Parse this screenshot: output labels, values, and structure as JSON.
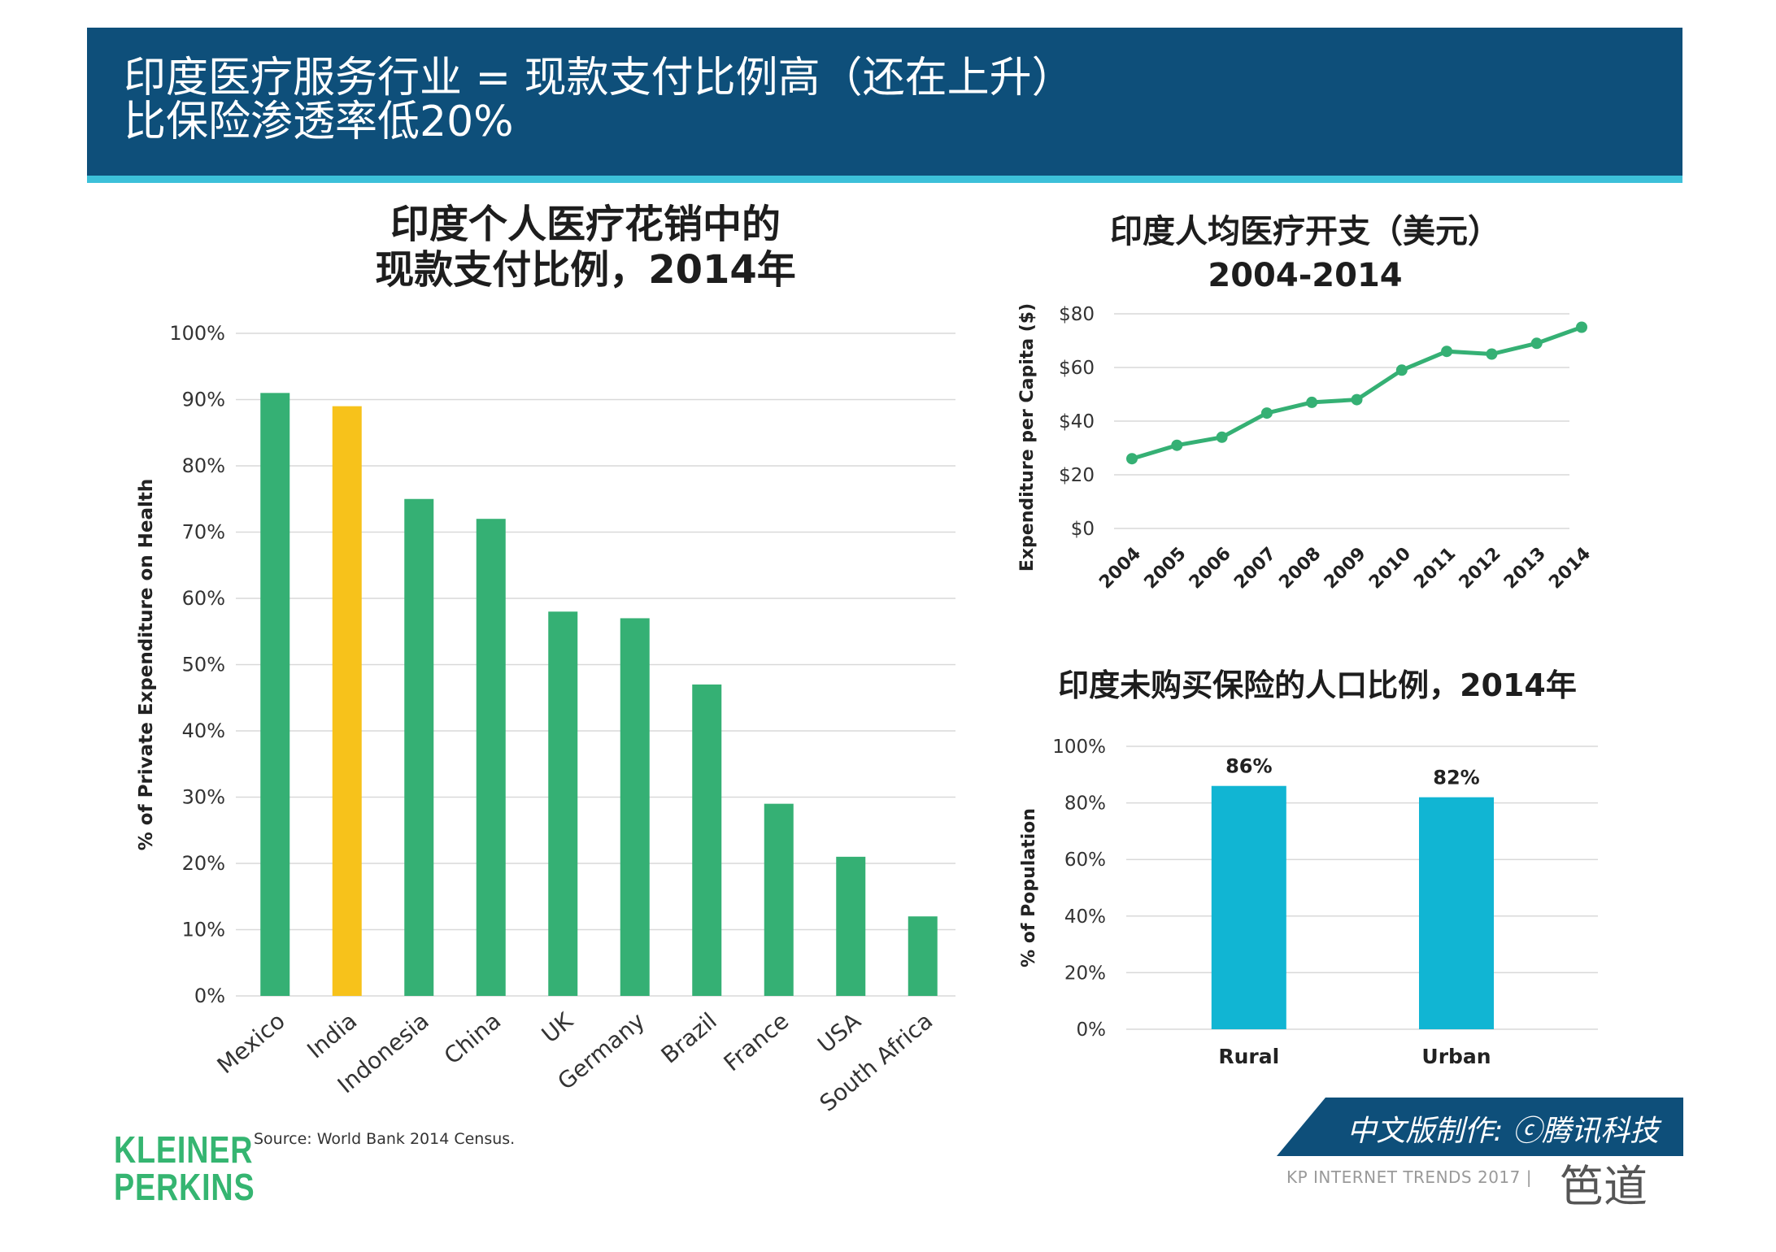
{
  "header": {
    "line1": "印度医疗服务行业 = 现款支付比例高（还在上升）",
    "line2": "比保险渗透率低20%"
  },
  "colors": {
    "header_bg": "#0e4f7a",
    "accent": "#3cc0d9",
    "green": "#35b074",
    "highlight": "#f7c21b",
    "cyan": "#11b5d3",
    "grid": "#d9d9d9"
  },
  "chart_data": [
    {
      "type": "bar",
      "title_line1": "印度个人医疗花销中的",
      "title_line2": "现款支付比例，2014年",
      "ylabel": "% of Private Expenditure on Health",
      "categories": [
        "Mexico",
        "India",
        "Indonesia",
        "China",
        "UK",
        "Germany",
        "Brazil",
        "France",
        "USA",
        "South Africa"
      ],
      "values": [
        91,
        89,
        75,
        72,
        58,
        57,
        47,
        29,
        21,
        12
      ],
      "highlight": "India",
      "yticks": [
        "0%",
        "10%",
        "20%",
        "30%",
        "40%",
        "50%",
        "60%",
        "70%",
        "80%",
        "90%",
        "100%"
      ],
      "ylim": [
        0,
        100
      ]
    },
    {
      "type": "line",
      "title_line1": "印度人均医疗开支（美元）",
      "title_line2": "2004-2014",
      "ylabel": "Expenditure per Capita ($)",
      "x": [
        "2004",
        "2005",
        "2006",
        "2007",
        "2008",
        "2009",
        "2010",
        "2011",
        "2012",
        "2013",
        "2014"
      ],
      "values": [
        26,
        31,
        34,
        43,
        47,
        48,
        59,
        66,
        65,
        69,
        75
      ],
      "yticks": [
        "$0",
        "$20",
        "$40",
        "$60",
        "$80"
      ],
      "ylim": [
        0,
        80
      ]
    },
    {
      "type": "bar",
      "title": "印度未购买保险的人口比例，2014年",
      "ylabel": "% of Population",
      "categories": [
        "Rural",
        "Urban"
      ],
      "values": [
        86,
        82
      ],
      "data_labels": [
        "86%",
        "82%"
      ],
      "yticks": [
        "0%",
        "20%",
        "40%",
        "60%",
        "80%",
        "100%"
      ],
      "ylim": [
        0,
        100
      ]
    }
  ],
  "source": "Source: World Bank 2014 Census.",
  "logo": {
    "line1": "KLEINER",
    "line2": "PERKINS"
  },
  "credit": "中文版制作: ⓒ腾讯科技",
  "footer": "KP INTERNET TRENDS 2017   |",
  "wechat": "笆道"
}
